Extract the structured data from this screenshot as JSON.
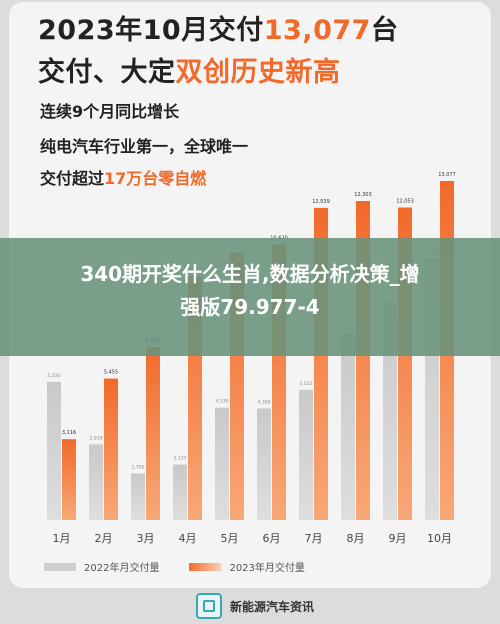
{
  "headline": {
    "line1_prefix": "2023年10月交付",
    "line1_highlight": "13,077",
    "line1_suffix": "台",
    "line2_prefix": "交付、大定",
    "line2_highlight": "双创历史新高"
  },
  "bullets": {
    "b1": "连续9个月同比增长",
    "b2": "纯电汽车行业第一，全球唯一",
    "b3_prefix": "交付超过",
    "b3_highlight": "17万台零自燃"
  },
  "overlay": {
    "line1": "340期开奖什么生肖,数据分析决策_增",
    "line2": "强版79.977-4"
  },
  "footer": {
    "brand": "新能源汽车资讯"
  },
  "colors": {
    "orange": "#f26a2a",
    "grey": "#cfcfcf",
    "banner": "#68937c"
  },
  "chart_data": {
    "type": "bar",
    "categories": [
      "1月",
      "2月",
      "3月",
      "4月",
      "5月",
      "6月",
      "7月",
      "8月",
      "9月",
      "10月"
    ],
    "series": [
      {
        "name": "2022年月交付量",
        "values": [
          5330,
          2918,
          1795,
          2137,
          4330,
          4300,
          5022,
          7164,
          8400,
          10111
        ],
        "labels": [
          "5,330",
          "2,918",
          "1,795",
          "2,137",
          "4,330",
          "4,300",
          "5,022",
          "7,164",
          "",
          "10,111"
        ]
      },
      {
        "name": "2023年月交付量",
        "values": [
          3116,
          5455,
          6663,
          9400,
          10300,
          10620,
          12039,
          12303,
          12053,
          13077
        ],
        "labels": [
          "3,116",
          "5,455",
          "6,663",
          "",
          "",
          "10,620",
          "12,039",
          "12,303",
          "12,053",
          "13,077"
        ]
      }
    ],
    "ylim": [
      0,
      13500
    ],
    "grid": false,
    "legend": "bottom-left"
  }
}
